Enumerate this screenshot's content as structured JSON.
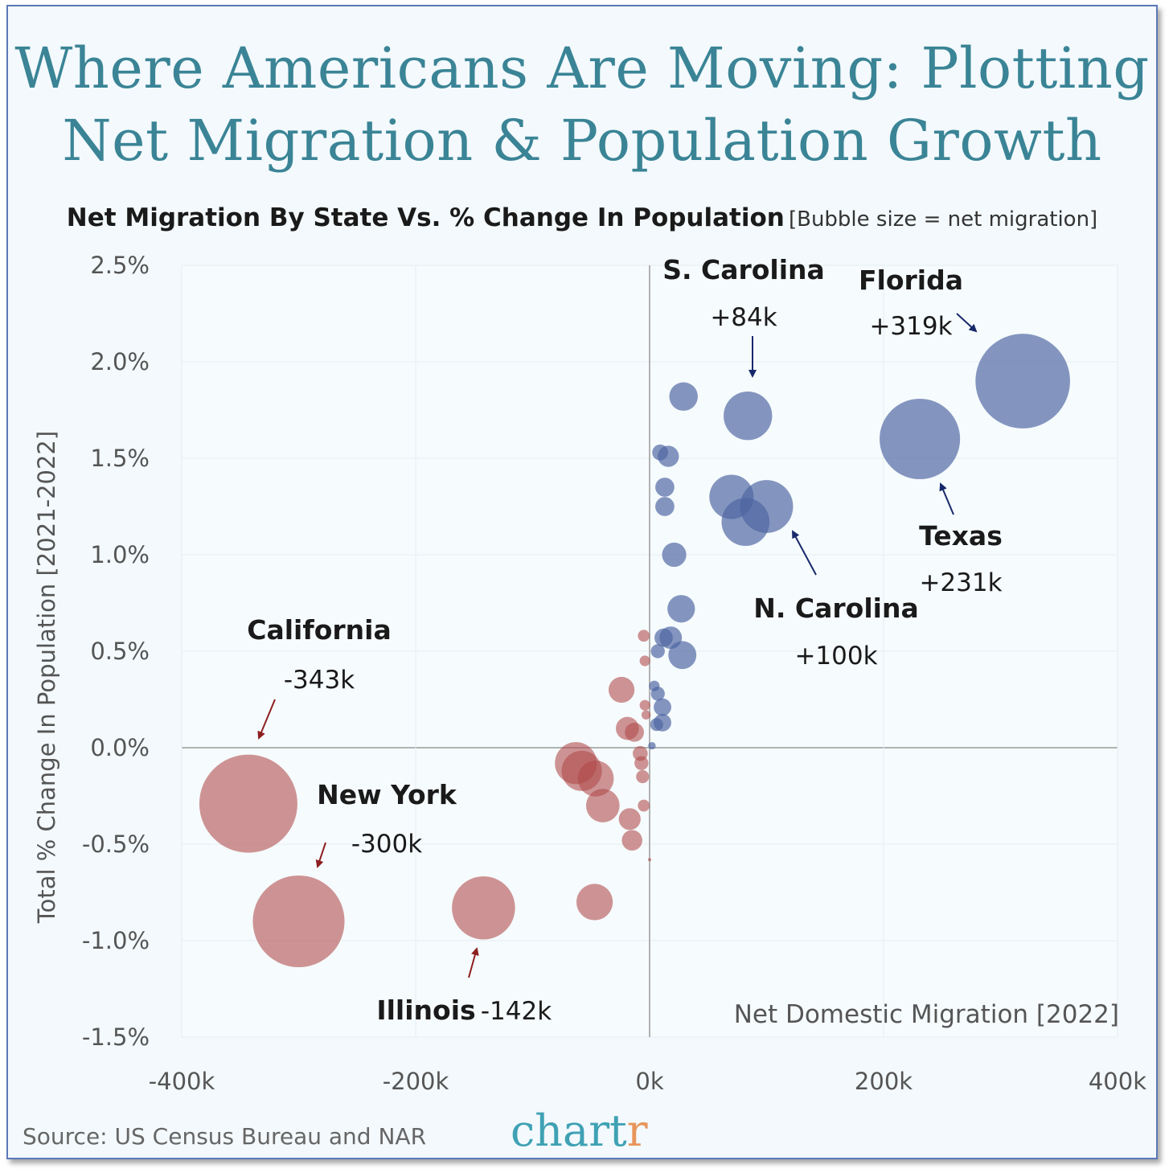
{
  "title_line1": "Where Americans Are Moving: Plotting",
  "title_line2": "Net Migration & Population Growth",
  "subtitle": "Net Migration By State Vs. % Change In Population",
  "subtitle_note": "[Bubble size = net migration]",
  "source": "Source: US Census Bureau and NAR",
  "brand_main": "chart",
  "brand_accent": "r",
  "colors": {
    "title": "#3a8496",
    "positive": "#4c64a0",
    "negative": "#b04848",
    "grid": "#ffffff",
    "background": "#f3f9fc"
  },
  "chart_data": {
    "type": "scatter",
    "xlabel": "Net Domestic Migration [2022]",
    "ylabel": "Total % Change In Population [2021-2022]",
    "xlim": [
      -400000,
      400000
    ],
    "ylim": [
      -1.5,
      2.5
    ],
    "grid": true,
    "x_ticks": [
      -400000,
      -200000,
      0,
      200000,
      400000
    ],
    "x_tick_labels": [
      "-400k",
      "-200k",
      "0k",
      "200k",
      "400k"
    ],
    "y_ticks": [
      2.5,
      2.0,
      1.5,
      1.0,
      0.5,
      0.0,
      -0.5,
      -1.0,
      -1.5
    ],
    "y_tick_labels": [
      "2.5%",
      "2.0%",
      "1.5%",
      "1.0%",
      "0.5%",
      "0.0%",
      "-0.5%",
      "-1.0%",
      "-1.5%"
    ],
    "points": [
      {
        "x": 319000,
        "y": 1.9,
        "label": "Florida",
        "value_label": "+319k"
      },
      {
        "x": 231000,
        "y": 1.6,
        "label": "Texas",
        "value_label": "+231k"
      },
      {
        "x": 84000,
        "y": 1.72,
        "label": "S. Carolina",
        "value_label": "+84k"
      },
      {
        "x": 100000,
        "y": 1.25,
        "label": "N. Carolina",
        "value_label": "+100k"
      },
      {
        "x": 70000,
        "y": 1.3
      },
      {
        "x": 82000,
        "y": 1.17
      },
      {
        "x": 29000,
        "y": 1.82
      },
      {
        "x": 16000,
        "y": 1.51
      },
      {
        "x": 9000,
        "y": 1.53
      },
      {
        "x": 13000,
        "y": 1.35
      },
      {
        "x": 13000,
        "y": 1.25
      },
      {
        "x": 21000,
        "y": 1.0
      },
      {
        "x": 27000,
        "y": 0.72
      },
      {
        "x": 28000,
        "y": 0.48
      },
      {
        "x": 18000,
        "y": 0.57
      },
      {
        "x": 12000,
        "y": 0.57
      },
      {
        "x": 7000,
        "y": 0.5
      },
      {
        "x": 11000,
        "y": 0.21
      },
      {
        "x": 11000,
        "y": 0.13
      },
      {
        "x": 7000,
        "y": 0.28
      },
      {
        "x": 6000,
        "y": 0.12
      },
      {
        "x": 4000,
        "y": 0.32
      },
      {
        "x": 2000,
        "y": 0.01
      },
      {
        "x": 0,
        "y": -0.58
      },
      {
        "x": -343000,
        "y": -0.29,
        "label": "California",
        "value_label": "-343k"
      },
      {
        "x": -300000,
        "y": -0.9,
        "label": "New York",
        "value_label": "-300k"
      },
      {
        "x": -142000,
        "y": -0.83,
        "label": "Illinois",
        "value_label": "-142k"
      },
      {
        "x": -63000,
        "y": -0.08
      },
      {
        "x": -58000,
        "y": -0.12
      },
      {
        "x": -46000,
        "y": -0.16
      },
      {
        "x": -40000,
        "y": -0.3
      },
      {
        "x": -47000,
        "y": -0.8
      },
      {
        "x": -24000,
        "y": 0.3
      },
      {
        "x": -19000,
        "y": 0.1
      },
      {
        "x": -13000,
        "y": 0.08
      },
      {
        "x": -17000,
        "y": -0.37
      },
      {
        "x": -15000,
        "y": -0.48
      },
      {
        "x": -8000,
        "y": -0.03
      },
      {
        "x": -7000,
        "y": -0.08
      },
      {
        "x": -6000,
        "y": -0.15
      },
      {
        "x": -5000,
        "y": 0.58
      },
      {
        "x": -4000,
        "y": 0.45
      },
      {
        "x": -4000,
        "y": 0.22
      },
      {
        "x": -3000,
        "y": 0.17
      },
      {
        "x": -5000,
        "y": -0.3
      }
    ]
  }
}
